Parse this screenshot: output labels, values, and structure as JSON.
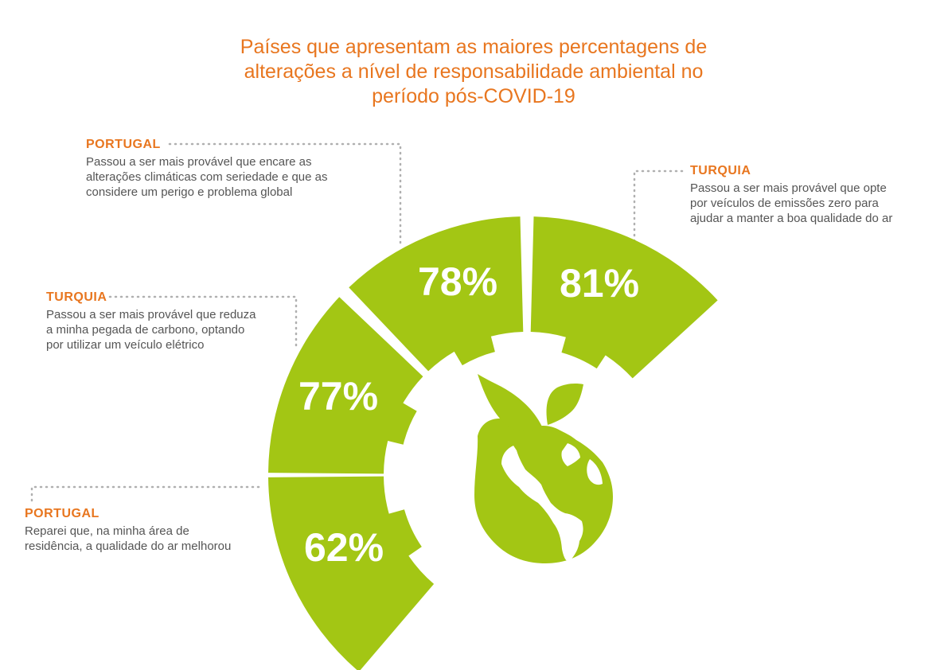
{
  "title_lines": [
    "Países que apresentam as maiores percentagens de",
    "alterações a nível de responsabilidade ambiental no",
    "período pós-COVID-19"
  ],
  "colors": {
    "accent": "#e8761f",
    "segment": "#a3c614",
    "text": "#555555",
    "dots": "#b0b0b0"
  },
  "chart_data": {
    "type": "pie",
    "values": [
      62,
      77,
      78,
      81
    ],
    "labels": [
      "62%",
      "77%",
      "78%",
      "81%"
    ],
    "value_unit": "%"
  },
  "callouts": [
    {
      "country": "PORTUGAL",
      "lines": [
        "Reparei que, na minha área de",
        "residência, a qualidade do ar melhorou"
      ]
    },
    {
      "country": "TURQUIA",
      "lines": [
        "Passou a ser mais provável que reduza",
        "a minha pegada de carbono, optando",
        "por utilizar um veículo elétrico"
      ]
    },
    {
      "country": "PORTUGAL",
      "lines": [
        "Passou a ser mais provável que encare as",
        "alterações climáticas com seriedade e que as",
        "considere um perigo e problema global"
      ]
    },
    {
      "country": "TURQUIA",
      "lines": [
        "Passou a ser mais provável que opte",
        "por veículos de emissões zero para",
        "ajudar a manter a boa qualidade do ar"
      ]
    }
  ],
  "icon": "earth-plant-icon"
}
